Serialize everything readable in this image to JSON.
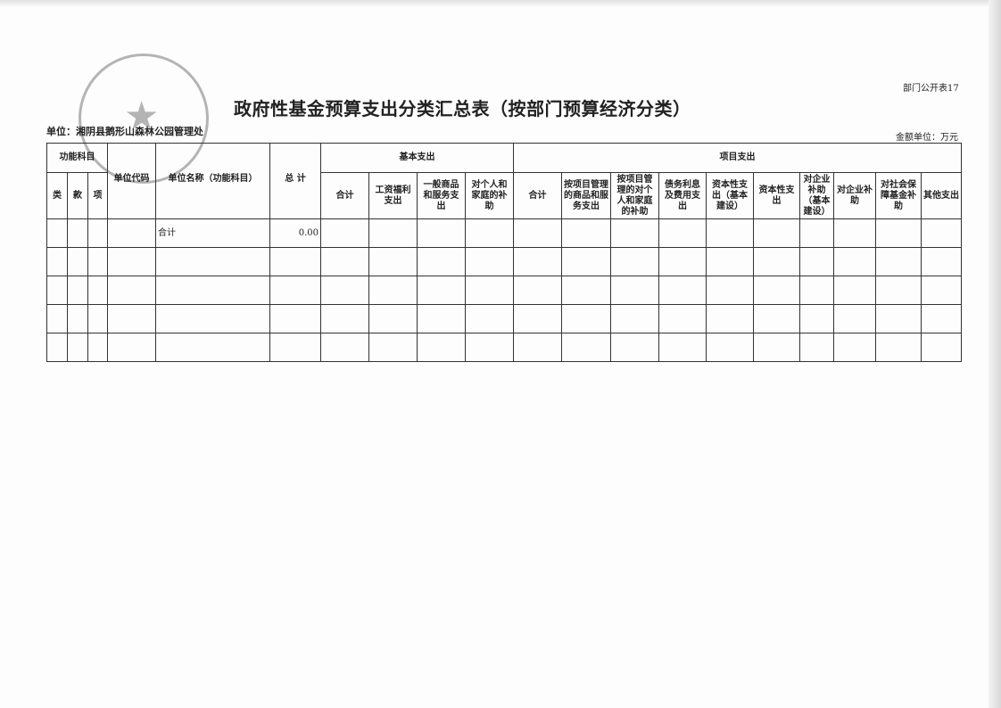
{
  "header": {
    "form_no": "部门公开表17",
    "title": "政府性基金预算支出分类汇总表（按部门预算经济分类）",
    "unit": "单位：湘阴县鹅形山森林公园管理处",
    "amount_unit": "金额单位：万元"
  },
  "table": {
    "group_headers": {
      "function_subject": "功能科目",
      "unit_code": "单位代码",
      "unit_name": "单位名称（功能科目）",
      "total": "总 计",
      "basic": "基本支出",
      "project": "项目支出"
    },
    "sub_headers": [
      "类",
      "款",
      "项"
    ],
    "basic_columns": [
      "合计",
      "工资福利支出",
      "一般商品和服务支出",
      "对个人和家庭的补助"
    ],
    "project_columns": [
      "合计",
      "按项目管理的商品和服务支出",
      "按项目管理的对个人和家庭的补助",
      "债务利息及费用支出",
      "资本性支出（基本建设）",
      "资本性支出",
      "对企业补助（基本建设）",
      "对企业补助",
      "对社会保障基金补助",
      "其他支出"
    ],
    "rows": [
      {
        "unit_name": "合计",
        "total": "0.00"
      }
    ]
  }
}
